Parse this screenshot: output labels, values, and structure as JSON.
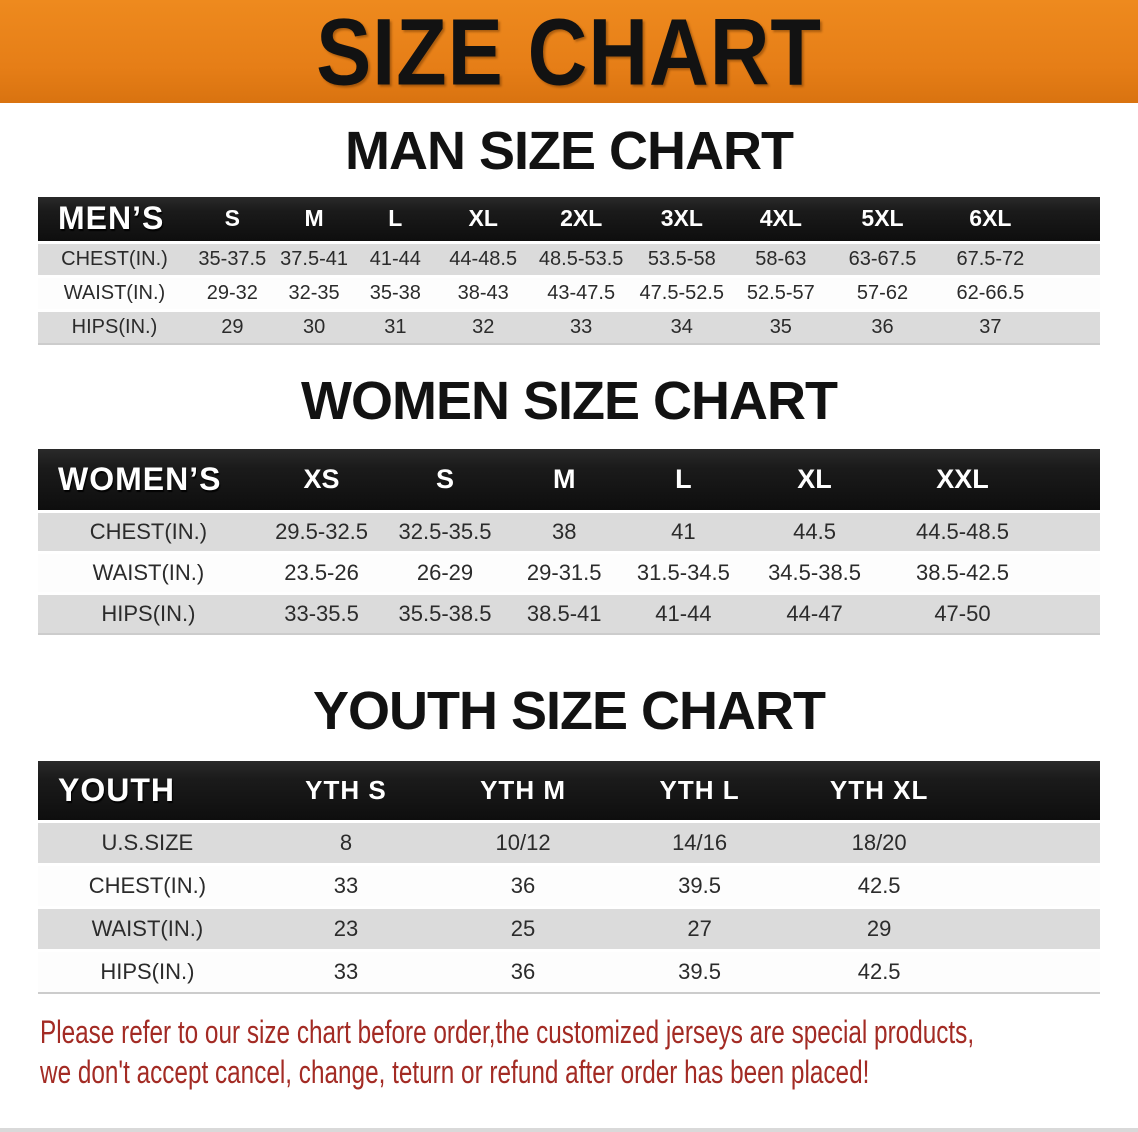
{
  "banner": {
    "title": "SIZE CHART"
  },
  "colors": {
    "banner_bg": "#E67E17",
    "header_bg": "#1B1B1B",
    "row_alt": "#DBDBDB",
    "note_red": "#A32B24"
  },
  "sections": [
    {
      "heading": "MAN SIZE CHART",
      "table": {
        "header": [
          "MEN’S",
          "S",
          "M",
          "L",
          "XL",
          "2XL",
          "3XL",
          "4XL",
          "5XL",
          "6XL"
        ],
        "rows": [
          [
            "CHEST(IN.)",
            "35-37.5",
            "37.5-41",
            "41-44",
            "44-48.5",
            "48.5-53.5",
            "53.5-58",
            "58-63",
            "63-67.5",
            "67.5-72"
          ],
          [
            "WAIST(IN.)",
            "29-32",
            "32-35",
            "35-38",
            "38-43",
            "43-47.5",
            "47.5-52.5",
            "52.5-57",
            "57-62",
            "62-66.5"
          ],
          [
            "HIPS(IN.)",
            "29",
            "30",
            "31",
            "32",
            "33",
            "34",
            "35",
            "36",
            "37"
          ]
        ]
      }
    },
    {
      "heading": "WOMEN SIZE CHART",
      "table": {
        "header": [
          "WOMEN’S",
          "XS",
          "S",
          "M",
          "L",
          "XL",
          "XXL"
        ],
        "rows": [
          [
            "CHEST(IN.)",
            "29.5-32.5",
            "32.5-35.5",
            "38",
            "41",
            "44.5",
            "44.5-48.5"
          ],
          [
            "WAIST(IN.)",
            "23.5-26",
            "26-29",
            "29-31.5",
            "31.5-34.5",
            "34.5-38.5",
            "38.5-42.5"
          ],
          [
            "HIPS(IN.)",
            "33-35.5",
            "35.5-38.5",
            "38.5-41",
            "41-44",
            "44-47",
            "47-50"
          ]
        ]
      }
    },
    {
      "heading": "YOUTH SIZE CHART",
      "table": {
        "header": [
          "YOUTH",
          "YTH S",
          "YTH M",
          "YTH L",
          "YTH XL"
        ],
        "rows": [
          [
            "U.S.SIZE",
            "8",
            "10/12",
            "14/16",
            "18/20"
          ],
          [
            "CHEST(IN.)",
            "33",
            "36",
            "39.5",
            "42.5"
          ],
          [
            "WAIST(IN.)",
            "23",
            "25",
            "27",
            "29"
          ],
          [
            "HIPS(IN.)",
            "33",
            "36",
            "39.5",
            "42.5"
          ]
        ]
      }
    }
  ],
  "footnote": {
    "line1": "Please refer to our size chart before order,the customized jerseys are special products,",
    "line2": "we don't accept cancel, change, teturn or refund after order has been placed!"
  }
}
